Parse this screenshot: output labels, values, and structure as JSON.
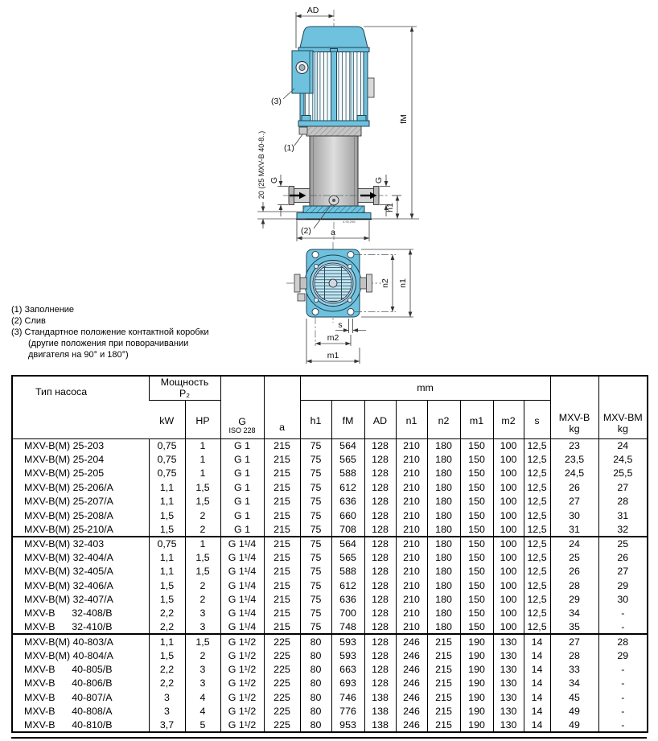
{
  "drawing": {
    "labels": {
      "ad": "AD",
      "fm": "fM",
      "g_left": "G",
      "g_right": "G",
      "h1": "h1",
      "a": "a",
      "note1": "(1)",
      "note2": "(2)",
      "note3": "(3)",
      "side": "20  (25 MXV-B 40-8..)",
      "code": "4.93.298",
      "n1": "n1",
      "n2": "n2",
      "s": "s",
      "m1": "m1",
      "m2": "m2"
    },
    "colors": {
      "pump_cyan": "#6fc2de",
      "steel_gray": "#cfcfcf"
    }
  },
  "notes": {
    "lines": [
      "(1) Заполнение",
      "(2) Слив",
      "(3) Стандартное положение контактной коробки",
      "(другие положения при поворачивании",
      "двигателя на 90° и 180°)"
    ]
  },
  "table": {
    "header": {
      "type": "Тип насоса",
      "power_line1": "Мощность",
      "power_line2": "P₂",
      "kw": "kW",
      "hp": "HP",
      "g": "G",
      "g_sub": "ISO 228",
      "a": "a",
      "mm": "mm",
      "mm_cols": [
        "h1",
        "fM",
        "AD",
        "n1",
        "n2",
        "m1",
        "m2",
        "s"
      ],
      "kg_b_line1": "MXV-B",
      "kg_b_line2": "kg",
      "kg_bm_line1": "MXV-BM",
      "kg_bm_line2": "kg"
    },
    "groups": [
      {
        "rows": [
          [
            "MXV-B(M) 25-203",
            "0,75",
            "1",
            "G 1",
            "215",
            "75",
            "564",
            "128",
            "210",
            "180",
            "150",
            "100",
            "12,5",
            "23",
            "24"
          ],
          [
            "MXV-B(M) 25-204",
            "0,75",
            "1",
            "G 1",
            "215",
            "75",
            "565",
            "128",
            "210",
            "180",
            "150",
            "100",
            "12,5",
            "23,5",
            "24,5"
          ],
          [
            "MXV-B(M) 25-205",
            "0,75",
            "1",
            "G 1",
            "215",
            "75",
            "588",
            "128",
            "210",
            "180",
            "150",
            "100",
            "12,5",
            "24,5",
            "25,5"
          ],
          [
            "MXV-B(M) 25-206/A",
            "1,1",
            "1,5",
            "G 1",
            "215",
            "75",
            "612",
            "128",
            "210",
            "180",
            "150",
            "100",
            "12,5",
            "26",
            "27"
          ],
          [
            "MXV-B(M) 25-207/A",
            "1,1",
            "1,5",
            "G 1",
            "215",
            "75",
            "636",
            "128",
            "210",
            "180",
            "150",
            "100",
            "12,5",
            "27",
            "28"
          ],
          [
            "MXV-B(M) 25-208/A",
            "1,5",
            "2",
            "G 1",
            "215",
            "75",
            "660",
            "128",
            "210",
            "180",
            "150",
            "100",
            "12,5",
            "30",
            "31"
          ],
          [
            "MXV-B(M) 25-210/A",
            "1,5",
            "2",
            "G 1",
            "215",
            "75",
            "708",
            "128",
            "210",
            "180",
            "150",
            "100",
            "12,5",
            "31",
            "32"
          ]
        ]
      },
      {
        "rows": [
          [
            "MXV-B(M) 32-403",
            "0,75",
            "1",
            "G 1¹/4",
            "215",
            "75",
            "564",
            "128",
            "210",
            "180",
            "150",
            "100",
            "12,5",
            "24",
            "25"
          ],
          [
            "MXV-B(M) 32-404/A",
            "1,1",
            "1,5",
            "G 1¹/4",
            "215",
            "75",
            "565",
            "128",
            "210",
            "180",
            "150",
            "100",
            "12,5",
            "25",
            "26"
          ],
          [
            "MXV-B(M) 32-405/A",
            "1,1",
            "1,5",
            "G 1¹/4",
            "215",
            "75",
            "588",
            "128",
            "210",
            "180",
            "150",
            "100",
            "12,5",
            "26",
            "27"
          ],
          [
            "MXV-B(M) 32-406/A",
            "1,5",
            "2",
            "G 1¹/4",
            "215",
            "75",
            "612",
            "128",
            "210",
            "180",
            "150",
            "100",
            "12,5",
            "28",
            "29"
          ],
          [
            "MXV-B(M) 32-407/A",
            "1,5",
            "2",
            "G 1¹/4",
            "215",
            "75",
            "636",
            "128",
            "210",
            "180",
            "150",
            "100",
            "12,5",
            "29",
            "30"
          ],
          [
            "MXV-B      32-408/B",
            "2,2",
            "3",
            "G 1¹/4",
            "215",
            "75",
            "700",
            "128",
            "210",
            "180",
            "150",
            "100",
            "12,5",
            "34",
            "-"
          ],
          [
            "MXV-B      32-410/B",
            "2,2",
            "3",
            "G 1¹/4",
            "215",
            "75",
            "748",
            "128",
            "210",
            "180",
            "150",
            "100",
            "12,5",
            "35",
            "-"
          ]
        ]
      },
      {
        "rows": [
          [
            "MXV-B(M) 40-803/A",
            "1,1",
            "1,5",
            "G 1¹/2",
            "225",
            "80",
            "593",
            "128",
            "246",
            "215",
            "190",
            "130",
            "14",
            "27",
            "28"
          ],
          [
            "MXV-B(M) 40-804/A",
            "1,5",
            "2",
            "G 1¹/2",
            "225",
            "80",
            "593",
            "128",
            "246",
            "215",
            "190",
            "130",
            "14",
            "28",
            "29"
          ],
          [
            "MXV-B      40-805/B",
            "2,2",
            "3",
            "G 1¹/2",
            "225",
            "80",
            "663",
            "128",
            "246",
            "215",
            "190",
            "130",
            "14",
            "33",
            "-"
          ],
          [
            "MXV-B      40-806/B",
            "2,2",
            "3",
            "G 1¹/2",
            "225",
            "80",
            "693",
            "128",
            "246",
            "215",
            "190",
            "130",
            "14",
            "34",
            "-"
          ],
          [
            "MXV-B      40-807/A",
            "3",
            "4",
            "G 1¹/2",
            "225",
            "80",
            "746",
            "138",
            "246",
            "215",
            "190",
            "130",
            "14",
            "45",
            "-"
          ],
          [
            "MXV-B      40-808/A",
            "3",
            "4",
            "G 1¹/2",
            "225",
            "80",
            "776",
            "138",
            "246",
            "215",
            "190",
            "130",
            "14",
            "49",
            "-"
          ],
          [
            "MXV-B      40-810/B",
            "3,7",
            "5",
            "G 1¹/2",
            "225",
            "80",
            "953",
            "138",
            "246",
            "215",
            "190",
            "130",
            "14",
            "49",
            "-"
          ]
        ]
      }
    ]
  }
}
